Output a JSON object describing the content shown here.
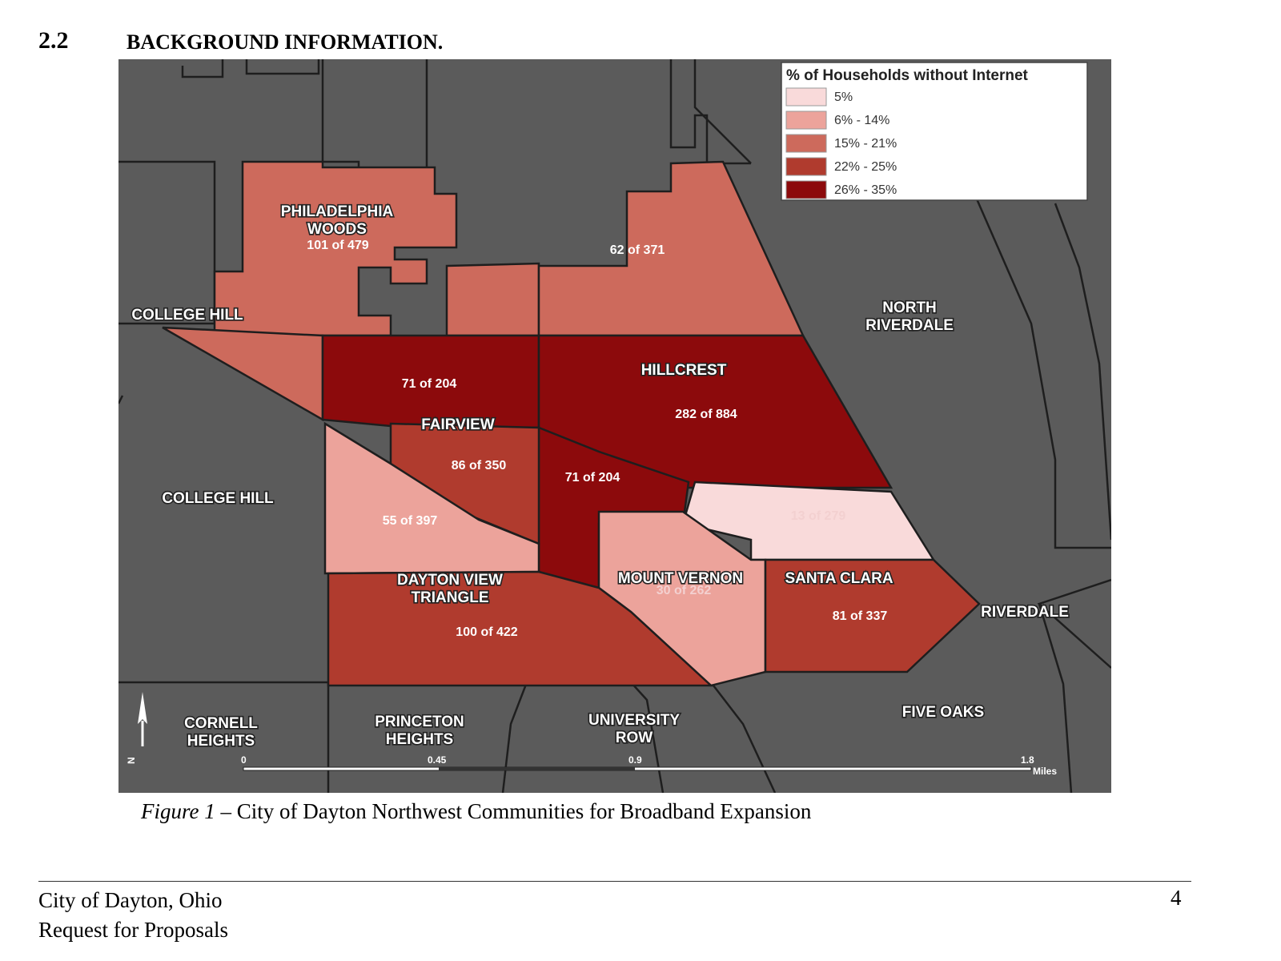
{
  "section": {
    "number": "2.2",
    "title": "BACKGROUND INFORMATION."
  },
  "map": {
    "legend": {
      "title": "% of Households without Internet",
      "items": [
        {
          "label": "5%",
          "color": "#f9dada"
        },
        {
          "label": "6% - 14%",
          "color": "#eca39b"
        },
        {
          "label": "15% - 21%",
          "color": "#cd6a5c"
        },
        {
          "label": "22% - 25%",
          "color": "#b03b2e"
        },
        {
          "label": "26% - 35%",
          "color": "#8c0a0c"
        }
      ]
    },
    "neighborhoods": {
      "philadelphia_woods_1": "PHILADELPHIA",
      "philadelphia_woods_2": "WOODS",
      "college_hill_top": "COLLEGE HILL",
      "college_hill_left": "COLLEGE HILL",
      "north_riverdale_1": "NORTH",
      "north_riverdale_2": "RIVERDALE",
      "hillcrest": "HILLCREST",
      "fairview": "FAIRVIEW",
      "dayton_view_1": "DAYTON VIEW",
      "dayton_view_2": "TRIANGLE",
      "mount_vernon": "MOUNT VERNON",
      "santa_clara": "SANTA CLARA",
      "riverdale": "RIVERDALE",
      "cornell_1": "CORNELL",
      "cornell_2": "HEIGHTS",
      "princeton_1": "PRINCETON",
      "princeton_2": "HEIGHTS",
      "university_1": "UNIVERSITY",
      "university_2": "ROW",
      "five_oaks": "FIVE OAKS"
    },
    "counts": {
      "philadelphia_woods": "101 of 479",
      "north_area": "62 of 371",
      "fairview_north": "71 of 204",
      "hillcrest": "282 of 884",
      "fairview_east": "86 of 350",
      "center": "71 of 204",
      "dayton_view_west": "55 of 397",
      "north_santa_clara": "13 of 279",
      "mount_vernon": "30 of 262",
      "santa_clara": "81 of 337",
      "dayton_view": "100 of 422"
    },
    "north_arrow": "N",
    "scale_bar": {
      "ticks": [
        "0",
        "0.45",
        "0.9",
        "1.8"
      ],
      "unit": "Miles"
    },
    "colors": {
      "background": "#5b5b5b",
      "border": "#1e1e1e"
    }
  },
  "caption": {
    "figure_label": "Figure 1",
    "text": " – City of Dayton Northwest Communities for Broadband Expansion"
  },
  "footer": {
    "line1": "City of Dayton, Ohio",
    "line2": "Request for Proposals",
    "page": "4"
  }
}
